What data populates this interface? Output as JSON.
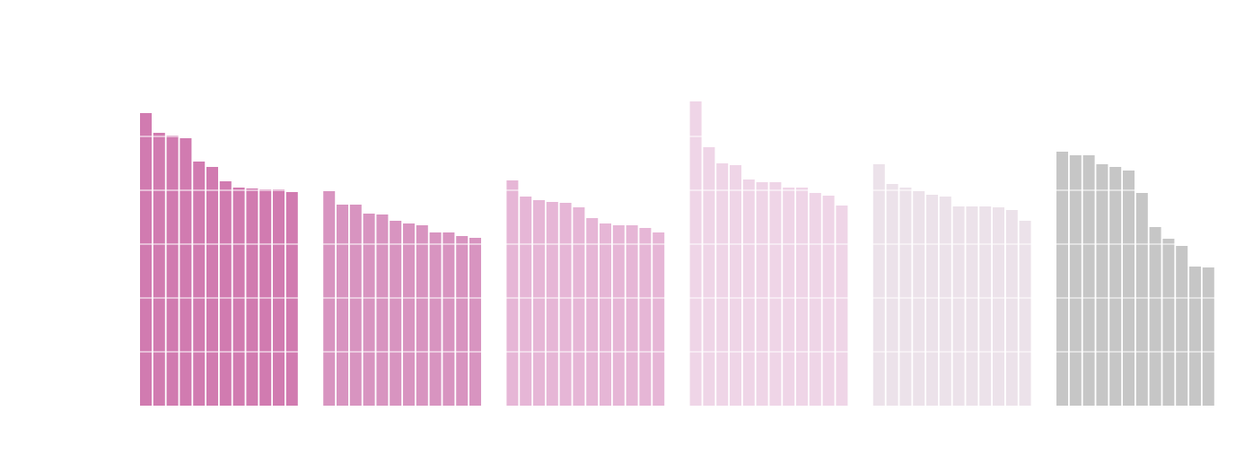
{
  "chart_data": {
    "type": "bar",
    "title": "",
    "xlabel": "",
    "ylabel": "",
    "ylim": [
      0,
      345
    ],
    "grid": true,
    "gridline_values": [
      60,
      120,
      180,
      240,
      300
    ],
    "legend": "none",
    "groups": [
      {
        "color": "#d17bb0",
        "values": [
          326,
          304,
          301,
          298,
          272,
          266,
          250,
          243,
          242,
          241,
          241,
          238
        ]
      },
      {
        "color": "#d894c0",
        "values": [
          239,
          224,
          224,
          214,
          213,
          206,
          203,
          201,
          193,
          193,
          189,
          187
        ]
      },
      {
        "color": "#e6b6d6",
        "values": [
          251,
          233,
          229,
          227,
          226,
          221,
          209,
          203,
          201,
          201,
          198,
          193
        ]
      },
      {
        "color": "#efd5e7",
        "values": [
          339,
          288,
          270,
          268,
          252,
          249,
          249,
          243,
          243,
          237,
          234,
          223
        ]
      },
      {
        "color": "#ece2ea",
        "values": [
          269,
          247,
          243,
          239,
          235,
          233,
          222,
          222,
          222,
          221,
          218,
          206
        ]
      },
      {
        "color": "#c6c6c6",
        "values": [
          283,
          279,
          279,
          269,
          266,
          262,
          237,
          199,
          186,
          178,
          155,
          154
        ]
      }
    ]
  }
}
